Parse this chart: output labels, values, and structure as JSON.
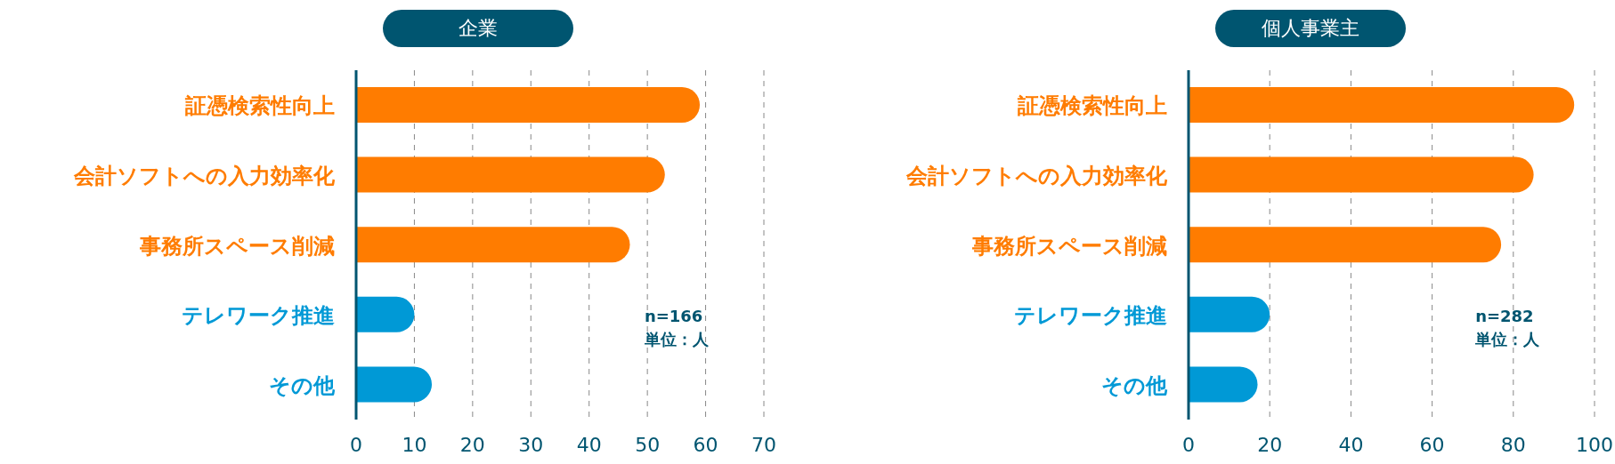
{
  "chart_data": [
    {
      "type": "bar",
      "orientation": "horizontal",
      "title": "企業",
      "categories": [
        "証憑検索性向上",
        "会計ソフトへの入力効率化",
        "事務所スペース削減",
        "テレワーク推進",
        "その他"
      ],
      "values": [
        59,
        53,
        47,
        10,
        13
      ],
      "colors": [
        "#ff7c00",
        "#ff7c00",
        "#ff7c00",
        "#0099d6",
        "#0099d6"
      ],
      "xlim": [
        0,
        70
      ],
      "xticks": [
        0,
        10,
        20,
        30,
        40,
        50,
        60,
        70
      ],
      "grid": "x",
      "annotations": [
        "n=166",
        "単位：人"
      ]
    },
    {
      "type": "bar",
      "orientation": "horizontal",
      "title": "個人事業主",
      "categories": [
        "証憑検索性向上",
        "会計ソフトへの入力効率化",
        "事務所スペース削減",
        "テレワーク推進",
        "その他"
      ],
      "values": [
        95,
        85,
        77,
        20,
        17
      ],
      "colors": [
        "#ff7c00",
        "#ff7c00",
        "#ff7c00",
        "#0099d6",
        "#0099d6"
      ],
      "xlim": [
        0,
        100
      ],
      "xticks": [
        0,
        20,
        40,
        60,
        80,
        100
      ],
      "grid": "x",
      "annotations": [
        "n=282",
        "単位：人"
      ]
    }
  ]
}
